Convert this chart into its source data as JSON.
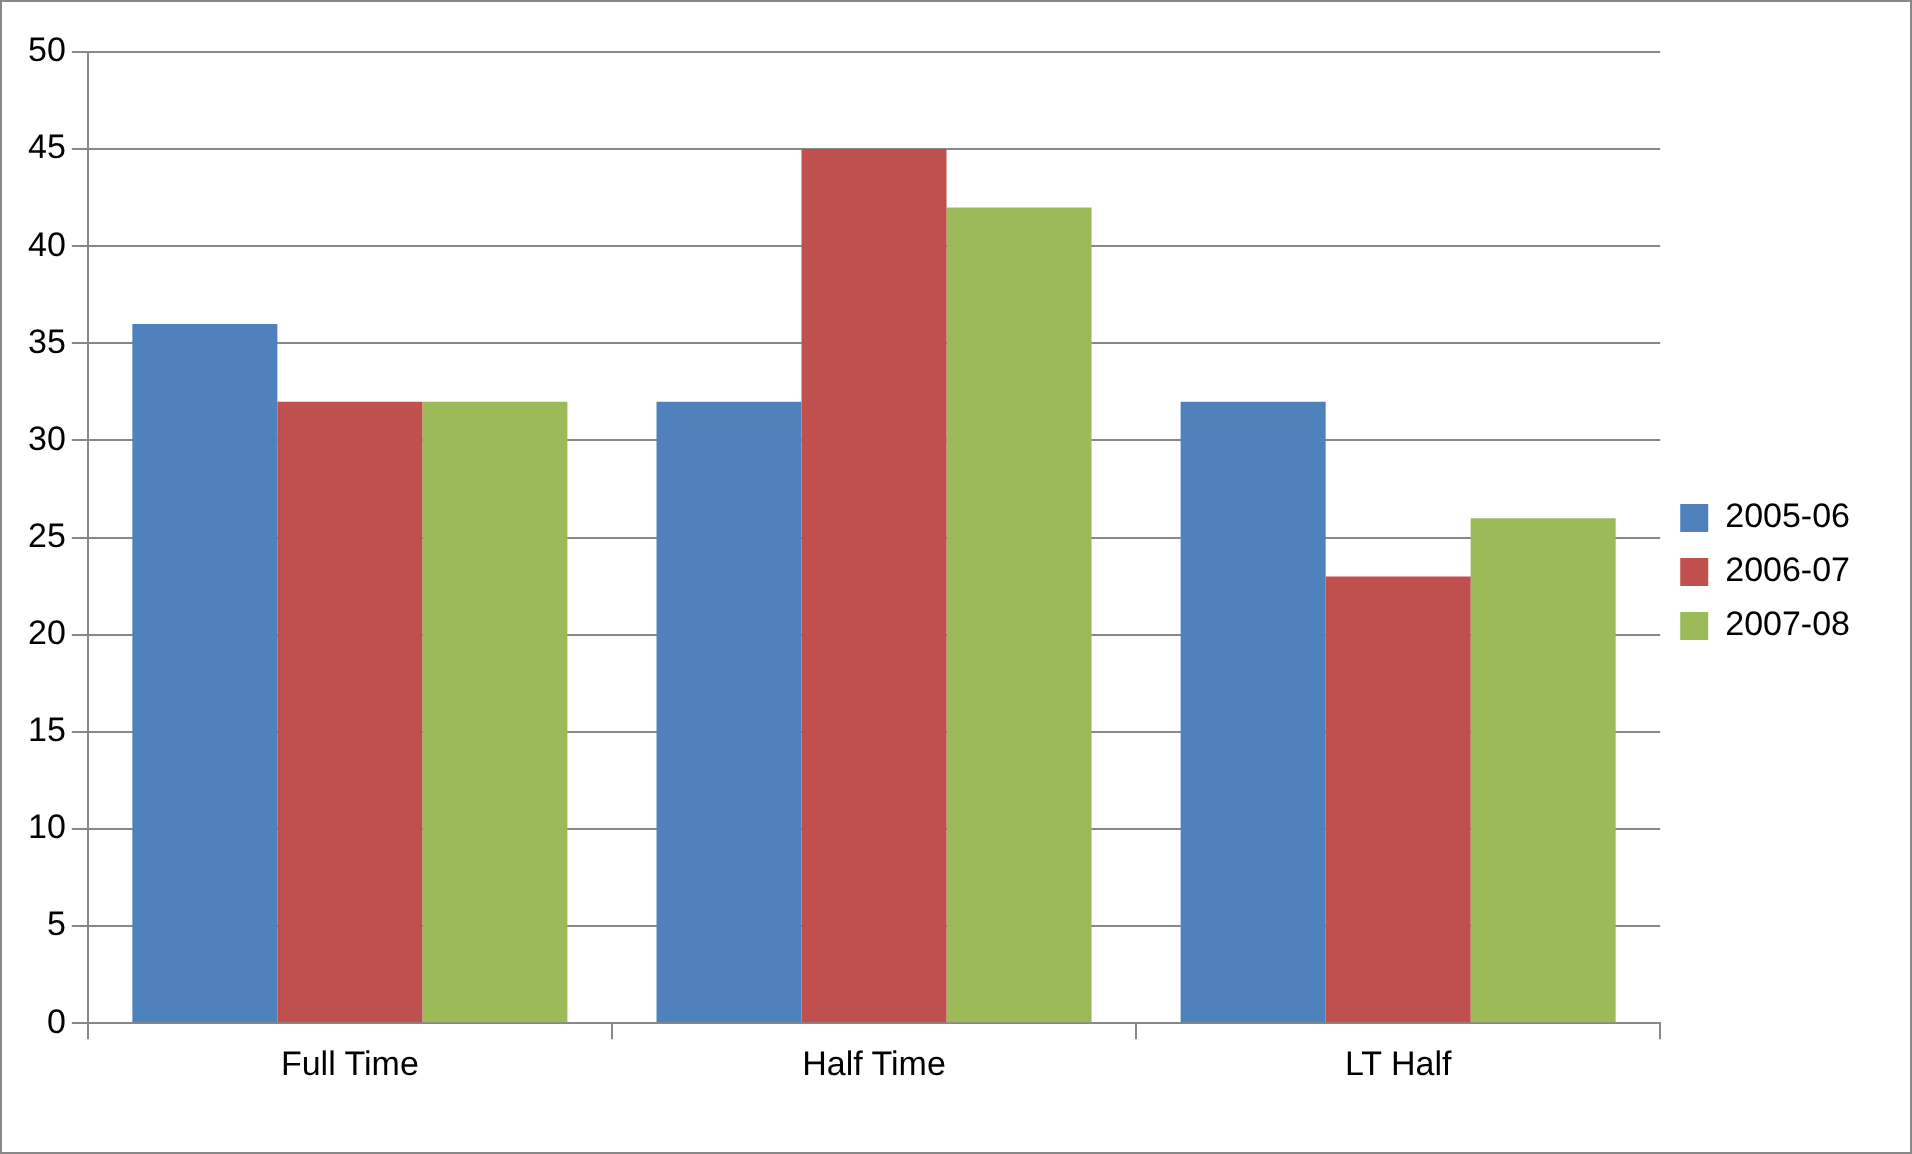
{
  "chart_data": {
    "type": "bar",
    "categories": [
      "Full Time",
      "Half Time",
      "LT Half"
    ],
    "series": [
      {
        "name": "2005-06",
        "color": "#4f81bd",
        "values": [
          36,
          32,
          32
        ]
      },
      {
        "name": "2006-07",
        "color": "#c0504d",
        "values": [
          32,
          45,
          23
        ]
      },
      {
        "name": "2007-08",
        "color": "#9bbb59",
        "values": [
          32,
          42,
          26
        ]
      }
    ],
    "ylim": [
      0,
      50
    ],
    "yticks": [
      0,
      5,
      10,
      15,
      20,
      25,
      30,
      35,
      40,
      45,
      50
    ],
    "grid": "y",
    "legend": "right"
  }
}
